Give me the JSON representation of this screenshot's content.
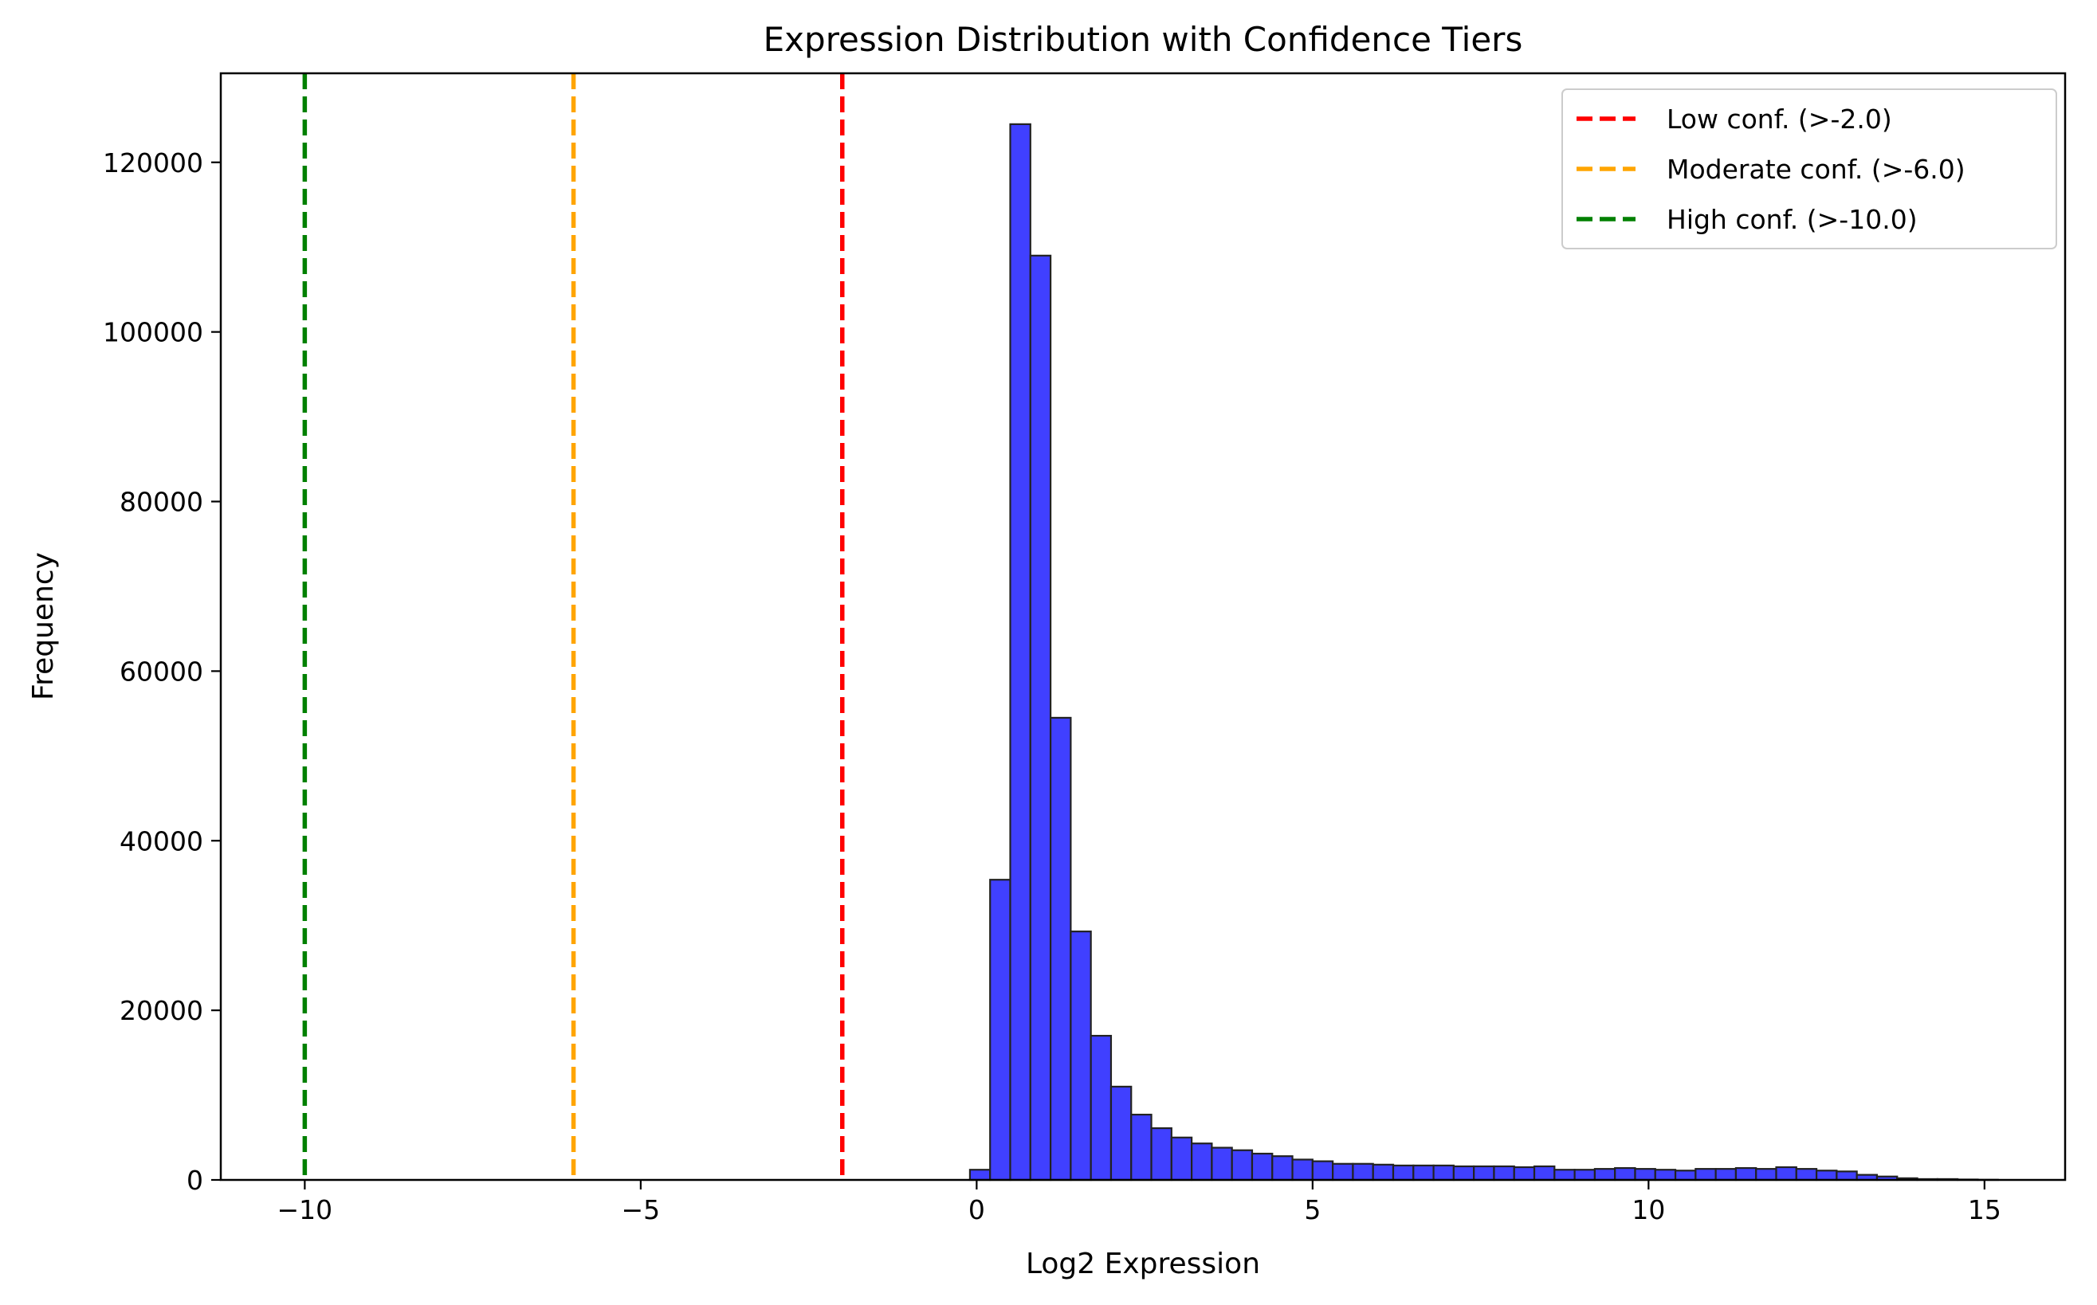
{
  "chart_data": {
    "type": "bar",
    "title": "Expression Distribution with Confidence Tiers",
    "xlabel": "Log2 Expression",
    "ylabel": "Frequency",
    "xlim": [
      -11.25,
      16.2
    ],
    "ylim": [
      0,
      130500
    ],
    "xticks": [
      -10,
      -5,
      0,
      5,
      10,
      15
    ],
    "xtick_labels": [
      "−10",
      "−5",
      "0",
      "5",
      "10",
      "15"
    ],
    "yticks": [
      0,
      20000,
      40000,
      60000,
      80000,
      100000,
      120000
    ],
    "ytick_labels": [
      "0",
      "20000",
      "40000",
      "60000",
      "80000",
      "100000",
      "120000"
    ],
    "grid": false,
    "histogram": {
      "bin_start": -0.1,
      "bin_width": 0.3,
      "bar_color": "#4040ff",
      "edge_color": "#222222",
      "counts": [
        1200,
        35400,
        124500,
        109000,
        54500,
        29300,
        17000,
        11000,
        7700,
        6100,
        5000,
        4300,
        3800,
        3500,
        3100,
        2800,
        2400,
        2200,
        1900,
        1900,
        1800,
        1700,
        1700,
        1700,
        1600,
        1600,
        1600,
        1500,
        1600,
        1200,
        1200,
        1300,
        1400,
        1300,
        1200,
        1100,
        1300,
        1300,
        1400,
        1300,
        1500,
        1300,
        1100,
        1000,
        600,
        400,
        200,
        100,
        100,
        50,
        20
      ]
    },
    "vlines": [
      {
        "x": -2.0,
        "color": "#ff0000",
        "name": "Low conf. (>-2.0)"
      },
      {
        "x": -6.0,
        "color": "#ffa500",
        "name": "Moderate conf. (>-6.0)"
      },
      {
        "x": -10.0,
        "color": "#008000",
        "name": "High conf. (>-10.0)"
      }
    ],
    "legend_position": "top-right"
  }
}
